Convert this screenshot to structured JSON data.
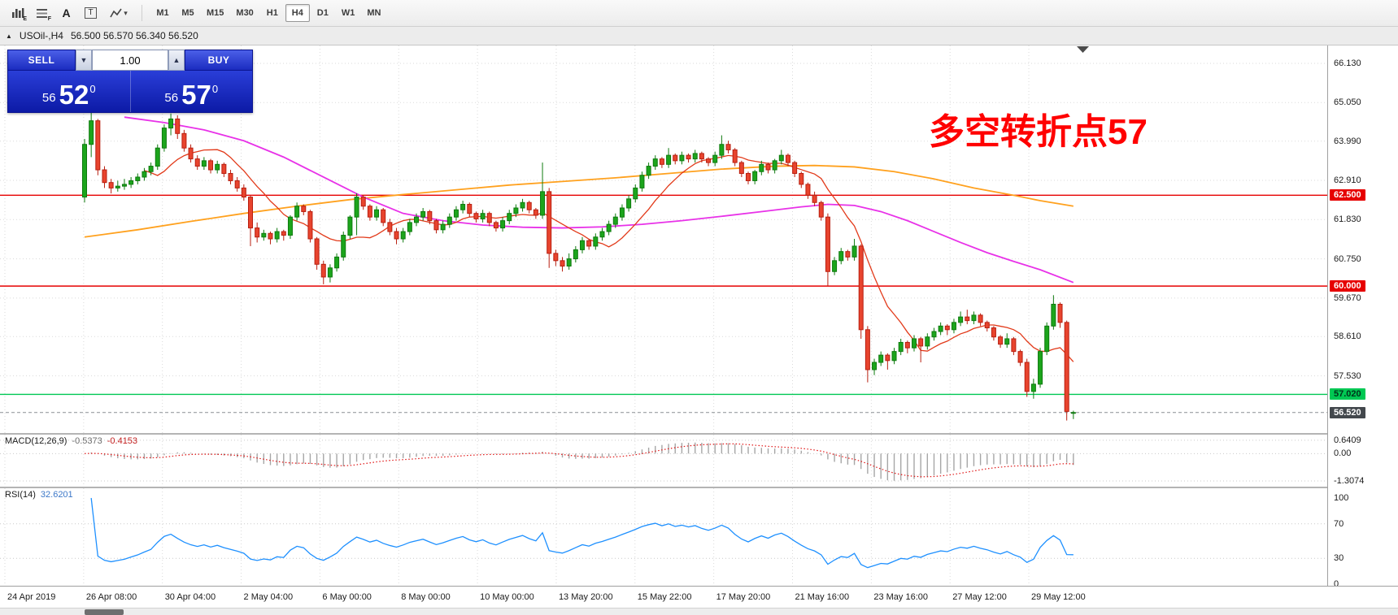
{
  "toolbar": {
    "icon_sub_e": "E",
    "icon_sub_f": "F",
    "icon_a": "A",
    "icon_t": "T",
    "timeframes": [
      "M1",
      "M5",
      "M15",
      "M30",
      "H1",
      "H4",
      "D1",
      "W1",
      "MN"
    ],
    "active_timeframe": "H4"
  },
  "chart_header": {
    "collapse_marker": "▲",
    "title": "USOil-,H4",
    "ohlc_text": "56.500 56.570 56.340 56.520"
  },
  "trade_panel": {
    "sell_label": "SELL",
    "buy_label": "BUY",
    "volume_value": "1.00",
    "bid_small": "56",
    "bid_big": "52",
    "bid_sup": "0",
    "ask_small": "56",
    "ask_big": "57",
    "ask_sup": "0"
  },
  "annotation": {
    "text": "多空转折点57",
    "color": "#ff0000"
  },
  "price_axis": {
    "labels": [
      "66.130",
      "65.050",
      "63.990",
      "62.910",
      "61.830",
      "60.750",
      "59.670",
      "58.610",
      "57.530"
    ],
    "badges": [
      {
        "text": "62.500",
        "value": 62.5,
        "bg": "#e60000",
        "fg": "#ffffff"
      },
      {
        "text": "60.000",
        "value": 60.0,
        "bg": "#e60000",
        "fg": "#ffffff"
      },
      {
        "text": "57.020",
        "value": 57.02,
        "bg": "#00c853",
        "fg": "#00331a"
      },
      {
        "text": "56.520",
        "value": 56.52,
        "bg": "#43484d",
        "fg": "#ffffff"
      }
    ]
  },
  "time_axis": {
    "labels": [
      "24 Apr 2019",
      "26 Apr 08:00",
      "30 Apr 04:00",
      "2 May 04:00",
      "6 May 00:00",
      "8 May 00:00",
      "10 May 00:00",
      "13 May 20:00",
      "15 May 22:00",
      "17 May 20:00",
      "21 May 16:00",
      "23 May 16:00",
      "27 May 12:00",
      "29 May 12:00"
    ]
  },
  "indicators": {
    "macd": {
      "label": "MACD(12,26,9)",
      "value_main": "-0.5373",
      "value_signal": "-0.4153",
      "scale_labels": [
        "0.6409",
        "0.00",
        "-1.3074"
      ],
      "scale_values": [
        0.6409,
        0,
        -1.3074
      ]
    },
    "rsi": {
      "label": "RSI(14)",
      "value": "32.6201",
      "scale_labels": [
        "100",
        "70",
        "30",
        "0"
      ],
      "scale_values": [
        100,
        70,
        30,
        0
      ],
      "level_lines": [
        70,
        30
      ]
    }
  },
  "chart_data": {
    "type": "candlestick",
    "title": "USOil-,H4",
    "symbol": "USOil-",
    "timeframe": "H4",
    "current_bid": 56.52,
    "price_range_visible": [
      56.0,
      66.6
    ],
    "hlines": [
      {
        "value": 62.5,
        "color": "#e60000"
      },
      {
        "value": 60.0,
        "color": "#e60000"
      },
      {
        "value": 57.02,
        "color": "#00c853"
      }
    ],
    "colors": {
      "up": "#1ca51c",
      "up_edge": "#0e7a0e",
      "down": "#e8442e",
      "down_edge": "#b81f10",
      "bid_line": "#8a8f94",
      "macd_hist": "#a6a6a6",
      "macd_signal": "#e01616",
      "rsi_line": "#1e90ff"
    },
    "candles": [
      [
        62.45,
        64.05,
        62.3,
        63.9
      ],
      [
        63.9,
        64.8,
        63.55,
        64.55
      ],
      [
        64.55,
        64.6,
        63.05,
        63.2
      ],
      [
        63.2,
        63.3,
        62.7,
        62.85
      ],
      [
        62.85,
        62.95,
        62.55,
        62.7
      ],
      [
        62.7,
        62.9,
        62.6,
        62.75
      ],
      [
        62.75,
        62.95,
        62.65,
        62.8
      ],
      [
        62.8,
        63.0,
        62.7,
        62.9
      ],
      [
        62.9,
        63.1,
        62.8,
        63.0
      ],
      [
        63.0,
        63.25,
        62.9,
        63.15
      ],
      [
        63.15,
        63.4,
        63.05,
        63.3
      ],
      [
        63.3,
        63.9,
        63.2,
        63.8
      ],
      [
        63.8,
        64.45,
        63.7,
        64.35
      ],
      [
        64.35,
        64.75,
        64.15,
        64.6
      ],
      [
        64.6,
        64.7,
        64.05,
        64.2
      ],
      [
        64.2,
        64.3,
        63.7,
        63.8
      ],
      [
        63.8,
        63.9,
        63.4,
        63.5
      ],
      [
        63.5,
        63.6,
        63.2,
        63.3
      ],
      [
        63.3,
        63.55,
        63.2,
        63.45
      ],
      [
        63.45,
        63.5,
        63.1,
        63.2
      ],
      [
        63.2,
        63.45,
        63.1,
        63.35
      ],
      [
        63.35,
        63.4,
        63.0,
        63.1
      ],
      [
        63.1,
        63.2,
        62.8,
        62.9
      ],
      [
        62.9,
        63.0,
        62.6,
        62.7
      ],
      [
        62.7,
        62.8,
        62.35,
        62.45
      ],
      [
        62.45,
        62.5,
        61.1,
        61.6
      ],
      [
        61.6,
        61.75,
        61.2,
        61.35
      ],
      [
        61.35,
        61.55,
        61.25,
        61.45
      ],
      [
        61.45,
        61.5,
        61.15,
        61.3
      ],
      [
        61.3,
        61.6,
        61.2,
        61.5
      ],
      [
        61.5,
        61.55,
        61.25,
        61.4
      ],
      [
        61.4,
        61.95,
        61.3,
        61.9
      ],
      [
        61.9,
        62.3,
        61.8,
        62.2
      ],
      [
        62.2,
        62.25,
        61.95,
        62.05
      ],
      [
        62.05,
        62.1,
        61.2,
        61.3
      ],
      [
        61.3,
        61.35,
        60.45,
        60.6
      ],
      [
        60.6,
        60.7,
        60.05,
        60.25
      ],
      [
        60.25,
        60.6,
        60.1,
        60.5
      ],
      [
        60.5,
        60.9,
        60.4,
        60.8
      ],
      [
        60.8,
        61.5,
        60.7,
        61.4
      ],
      [
        61.4,
        61.95,
        61.3,
        61.9
      ],
      [
        61.9,
        62.55,
        61.4,
        62.45
      ],
      [
        62.45,
        62.5,
        62.1,
        62.2
      ],
      [
        62.2,
        62.25,
        61.8,
        61.9
      ],
      [
        61.9,
        62.2,
        61.8,
        62.1
      ],
      [
        62.1,
        62.15,
        61.65,
        61.75
      ],
      [
        61.75,
        61.85,
        61.4,
        61.5
      ],
      [
        61.5,
        61.6,
        61.15,
        61.3
      ],
      [
        61.3,
        61.6,
        61.2,
        61.5
      ],
      [
        61.5,
        61.85,
        61.4,
        61.75
      ],
      [
        61.75,
        62.0,
        61.65,
        61.9
      ],
      [
        61.9,
        62.15,
        61.8,
        62.05
      ],
      [
        62.05,
        62.1,
        61.7,
        61.8
      ],
      [
        61.8,
        61.85,
        61.45,
        61.55
      ],
      [
        61.55,
        61.8,
        61.45,
        61.7
      ],
      [
        61.7,
        62.0,
        61.6,
        61.9
      ],
      [
        61.9,
        62.2,
        61.8,
        62.1
      ],
      [
        62.1,
        62.35,
        62.0,
        62.25
      ],
      [
        62.25,
        62.3,
        61.9,
        62.0
      ],
      [
        62.0,
        62.05,
        61.75,
        61.85
      ],
      [
        61.85,
        62.1,
        61.75,
        62.0
      ],
      [
        62.0,
        62.05,
        61.65,
        61.75
      ],
      [
        61.75,
        61.8,
        61.5,
        61.6
      ],
      [
        61.6,
        61.9,
        61.5,
        61.8
      ],
      [
        61.8,
        62.1,
        61.7,
        62.0
      ],
      [
        62.0,
        62.25,
        61.9,
        62.15
      ],
      [
        62.15,
        62.4,
        62.05,
        62.3
      ],
      [
        62.3,
        62.35,
        62.0,
        62.1
      ],
      [
        62.1,
        62.15,
        61.85,
        61.95
      ],
      [
        61.95,
        63.4,
        61.85,
        62.6
      ],
      [
        62.6,
        62.7,
        60.5,
        60.9
      ],
      [
        60.9,
        61.0,
        60.55,
        60.7
      ],
      [
        60.7,
        60.8,
        60.4,
        60.55
      ],
      [
        60.55,
        60.9,
        60.45,
        60.75
      ],
      [
        60.75,
        61.1,
        60.65,
        61.0
      ],
      [
        61.0,
        61.35,
        60.9,
        61.25
      ],
      [
        61.25,
        61.3,
        61.0,
        61.1
      ],
      [
        61.1,
        61.45,
        61.0,
        61.35
      ],
      [
        61.35,
        61.6,
        61.25,
        61.5
      ],
      [
        61.5,
        61.8,
        61.4,
        61.7
      ],
      [
        61.7,
        62.0,
        61.6,
        61.9
      ],
      [
        61.9,
        62.25,
        61.8,
        62.15
      ],
      [
        62.15,
        62.5,
        62.05,
        62.4
      ],
      [
        62.4,
        62.8,
        62.3,
        62.7
      ],
      [
        62.7,
        63.15,
        62.6,
        63.05
      ],
      [
        63.05,
        63.4,
        62.95,
        63.3
      ],
      [
        63.3,
        63.6,
        63.2,
        63.5
      ],
      [
        63.5,
        63.55,
        63.25,
        63.35
      ],
      [
        63.35,
        63.8,
        63.25,
        63.6
      ],
      [
        63.6,
        63.65,
        63.35,
        63.45
      ],
      [
        63.45,
        63.7,
        63.35,
        63.6
      ],
      [
        63.6,
        63.65,
        63.4,
        63.5
      ],
      [
        63.5,
        63.75,
        63.4,
        63.65
      ],
      [
        63.65,
        63.7,
        63.4,
        63.5
      ],
      [
        63.5,
        63.55,
        63.3,
        63.4
      ],
      [
        63.4,
        63.7,
        63.3,
        63.6
      ],
      [
        63.6,
        64.15,
        63.5,
        63.9
      ],
      [
        63.9,
        64.0,
        63.65,
        63.75
      ],
      [
        63.75,
        63.8,
        63.3,
        63.4
      ],
      [
        63.4,
        63.45,
        63.0,
        63.1
      ],
      [
        63.1,
        63.15,
        62.8,
        62.9
      ],
      [
        62.9,
        63.2,
        62.8,
        63.15
      ],
      [
        63.15,
        63.45,
        63.05,
        63.35
      ],
      [
        63.35,
        63.4,
        63.1,
        63.2
      ],
      [
        63.2,
        63.5,
        63.1,
        63.45
      ],
      [
        63.45,
        63.75,
        63.35,
        63.6
      ],
      [
        63.6,
        63.65,
        63.3,
        63.4
      ],
      [
        63.4,
        63.45,
        63.0,
        63.1
      ],
      [
        63.1,
        63.15,
        62.7,
        62.8
      ],
      [
        62.8,
        62.85,
        62.4,
        62.5
      ],
      [
        62.5,
        62.6,
        62.2,
        62.3
      ],
      [
        62.3,
        62.35,
        61.8,
        61.9
      ],
      [
        61.9,
        62.0,
        60.0,
        60.4
      ],
      [
        60.4,
        60.8,
        60.3,
        60.7
      ],
      [
        60.7,
        61.05,
        60.6,
        60.95
      ],
      [
        60.95,
        61.0,
        60.7,
        60.8
      ],
      [
        60.8,
        61.3,
        60.7,
        61.1
      ],
      [
        61.1,
        61.15,
        58.55,
        58.8
      ],
      [
        58.8,
        58.9,
        57.35,
        57.7
      ],
      [
        57.7,
        58.0,
        57.55,
        57.9
      ],
      [
        57.9,
        58.2,
        57.8,
        58.1
      ],
      [
        58.1,
        58.15,
        57.7,
        57.95
      ],
      [
        57.95,
        58.3,
        57.85,
        58.2
      ],
      [
        58.2,
        58.55,
        58.1,
        58.45
      ],
      [
        58.45,
        58.5,
        58.15,
        58.3
      ],
      [
        58.3,
        58.65,
        58.2,
        58.55
      ],
      [
        58.55,
        58.6,
        57.9,
        58.35
      ],
      [
        58.35,
        58.7,
        58.25,
        58.6
      ],
      [
        58.6,
        58.85,
        58.5,
        58.75
      ],
      [
        58.75,
        59.0,
        58.65,
        58.9
      ],
      [
        58.9,
        58.95,
        58.65,
        58.8
      ],
      [
        58.8,
        59.1,
        58.7,
        59.0
      ],
      [
        59.0,
        59.3,
        58.9,
        59.15
      ],
      [
        59.15,
        59.35,
        58.95,
        59.05
      ],
      [
        59.05,
        59.3,
        58.95,
        59.2
      ],
      [
        59.2,
        59.25,
        58.9,
        59.0
      ],
      [
        59.0,
        59.05,
        58.75,
        58.85
      ],
      [
        58.85,
        58.9,
        58.5,
        58.6
      ],
      [
        58.6,
        58.65,
        58.3,
        58.4
      ],
      [
        58.4,
        58.7,
        58.3,
        58.55
      ],
      [
        58.55,
        58.6,
        58.1,
        58.2
      ],
      [
        58.2,
        58.25,
        57.8,
        57.9
      ],
      [
        57.9,
        58.0,
        56.95,
        57.1
      ],
      [
        57.1,
        57.45,
        56.9,
        57.3
      ],
      [
        57.3,
        58.3,
        57.2,
        58.2
      ],
      [
        58.2,
        59.0,
        58.1,
        58.9
      ],
      [
        58.9,
        59.75,
        58.8,
        59.5
      ],
      [
        59.5,
        59.55,
        58.85,
        59.0
      ],
      [
        59.0,
        59.05,
        56.3,
        56.55
      ],
      [
        56.5,
        56.57,
        56.34,
        56.52
      ]
    ],
    "overlays": {
      "ma_slow": {
        "color": "#e832e8",
        "points": [
          [
            6,
            64.65
          ],
          [
            12,
            64.5
          ],
          [
            18,
            64.3
          ],
          [
            24,
            64.0
          ],
          [
            30,
            63.55
          ],
          [
            36,
            63.0
          ],
          [
            42,
            62.45
          ],
          [
            48,
            62.0
          ],
          [
            54,
            61.8
          ],
          [
            60,
            61.68
          ],
          [
            66,
            61.62
          ],
          [
            72,
            61.6
          ],
          [
            78,
            61.63
          ],
          [
            84,
            61.7
          ],
          [
            90,
            61.8
          ],
          [
            96,
            61.92
          ],
          [
            102,
            62.05
          ],
          [
            108,
            62.18
          ],
          [
            112,
            62.25
          ],
          [
            116,
            62.22
          ],
          [
            120,
            62.05
          ],
          [
            124,
            61.8
          ],
          [
            128,
            61.5
          ],
          [
            132,
            61.2
          ],
          [
            136,
            60.92
          ],
          [
            140,
            60.68
          ],
          [
            144,
            60.45
          ],
          [
            149,
            60.1
          ]
        ]
      },
      "ma_mid": {
        "color": "#ffa11e",
        "points": [
          [
            0,
            61.35
          ],
          [
            8,
            61.55
          ],
          [
            16,
            61.78
          ],
          [
            24,
            62.0
          ],
          [
            32,
            62.2
          ],
          [
            40,
            62.38
          ],
          [
            48,
            62.52
          ],
          [
            56,
            62.65
          ],
          [
            64,
            62.78
          ],
          [
            72,
            62.88
          ],
          [
            80,
            62.98
          ],
          [
            88,
            63.1
          ],
          [
            96,
            63.22
          ],
          [
            104,
            63.3
          ],
          [
            110,
            63.32
          ],
          [
            116,
            63.28
          ],
          [
            122,
            63.15
          ],
          [
            128,
            62.95
          ],
          [
            134,
            62.7
          ],
          [
            140,
            62.5
          ],
          [
            144,
            62.35
          ],
          [
            149,
            62.2
          ]
        ]
      },
      "ma_fast": {
        "color": "#e23a1a",
        "type": "sma",
        "period": 10
      }
    }
  }
}
